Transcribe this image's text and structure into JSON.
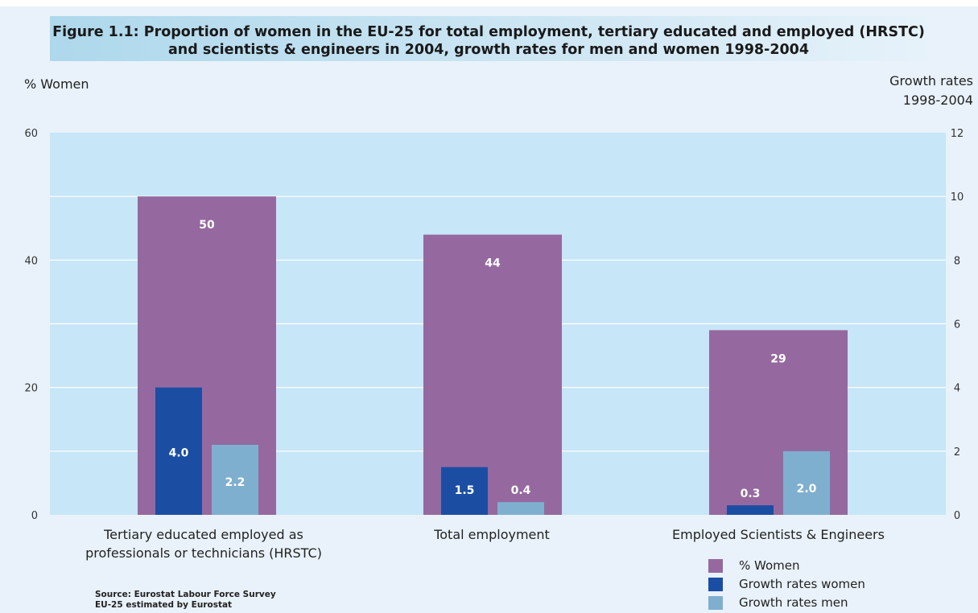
{
  "title": {
    "line1": "Figure 1.1: Proportion of women in the EU-25 for total employment, tertiary educated and employed (HRSTC)",
    "line2": "and scientists & engineers in 2004, growth rates for men and women 1998-2004"
  },
  "axes": {
    "left_title": "% Women",
    "right_title_line1": "Growth rates",
    "right_title_line2": "1998-2004"
  },
  "source": {
    "line1": "Source: Eurostat Labour Force Survey",
    "line2": "EU-25 estimated by Eurostat"
  },
  "colors": {
    "women_pct": "#95699f",
    "growth_women": "#1b4ea3",
    "growth_men": "#7fafcf",
    "plot_bg": "#c7e6f7",
    "gridline": "#ffffff"
  },
  "chart_data": {
    "type": "bar",
    "categories": [
      [
        "Tertiary educated employed as",
        "professionals or technicians (HRSTC)"
      ],
      [
        "Total employment"
      ],
      [
        "Employed Scientists & Engineers"
      ]
    ],
    "series": [
      {
        "name": "% Women",
        "axis": "left",
        "values": [
          50,
          44,
          29
        ],
        "labels": [
          "50",
          "44",
          "29"
        ]
      },
      {
        "name": "Growth rates women",
        "axis": "right",
        "values": [
          4.0,
          1.5,
          0.3
        ],
        "labels": [
          "4.0",
          "1.5",
          "0.3"
        ]
      },
      {
        "name": "Growth rates men",
        "axis": "right",
        "values": [
          2.2,
          0.4,
          2.0
        ],
        "labels": [
          "2.2",
          "0.4",
          "2.0"
        ]
      }
    ],
    "ylim_left": [
      0,
      60
    ],
    "yticks_left": [
      "0",
      "20",
      "40",
      "60"
    ],
    "ylim_right": [
      0,
      12
    ],
    "yticks_right": [
      "0",
      "2",
      "4",
      "6",
      "8",
      "10",
      "12"
    ],
    "grid": true,
    "legend_position": "bottom-right"
  }
}
